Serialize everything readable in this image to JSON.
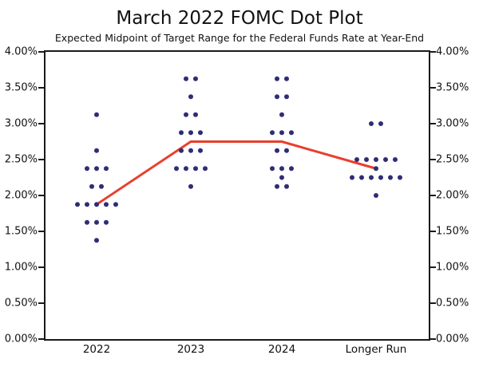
{
  "chart_data": {
    "type": "scatter",
    "title": "March 2022 FOMC Dot Plot",
    "subtitle": "Expected Midpoint of Target Range for the Federal Funds Rate at Year-End",
    "categories": [
      "2022",
      "2023",
      "2024",
      "Longer Run"
    ],
    "ylim": [
      0,
      4
    ],
    "ytick_step": 0.5,
    "ytick_labels": [
      "0.00%",
      "0.50%",
      "1.00%",
      "1.50%",
      "2.00%",
      "2.50%",
      "3.00%",
      "3.50%",
      "4.00%"
    ],
    "grid": false,
    "legend": "none",
    "dot_series": [
      {
        "category": "2022",
        "dots": [
          {
            "value": 3.125,
            "count": 1
          },
          {
            "value": 2.625,
            "count": 1
          },
          {
            "value": 2.375,
            "count": 3
          },
          {
            "value": 2.125,
            "count": 2
          },
          {
            "value": 1.875,
            "count": 5
          },
          {
            "value": 1.625,
            "count": 3
          },
          {
            "value": 1.375,
            "count": 1
          }
        ]
      },
      {
        "category": "2023",
        "dots": [
          {
            "value": 3.625,
            "count": 2
          },
          {
            "value": 3.375,
            "count": 1
          },
          {
            "value": 3.125,
            "count": 2
          },
          {
            "value": 2.875,
            "count": 3
          },
          {
            "value": 2.625,
            "count": 3
          },
          {
            "value": 2.375,
            "count": 4
          },
          {
            "value": 2.125,
            "count": 1
          }
        ]
      },
      {
        "category": "2024",
        "dots": [
          {
            "value": 3.625,
            "count": 2
          },
          {
            "value": 3.375,
            "count": 2
          },
          {
            "value": 3.125,
            "count": 1
          },
          {
            "value": 2.875,
            "count": 3
          },
          {
            "value": 2.625,
            "count": 2
          },
          {
            "value": 2.375,
            "count": 3
          },
          {
            "value": 2.25,
            "count": 1
          },
          {
            "value": 2.125,
            "count": 2
          }
        ]
      },
      {
        "category": "Longer Run",
        "dots": [
          {
            "value": 3.0,
            "count": 2
          },
          {
            "value": 2.5,
            "count": 5
          },
          {
            "value": 2.375,
            "count": 1
          },
          {
            "value": 2.25,
            "count": 6
          },
          {
            "value": 2.0,
            "count": 1
          }
        ]
      }
    ],
    "median_line": {
      "name": "median-path",
      "values": [
        1.875,
        2.75,
        2.75,
        2.375
      ]
    },
    "colors": {
      "dot": "#2e2d74",
      "median_line": "#e8402e",
      "axis": "#1a1a1a",
      "text": "#111111"
    }
  }
}
